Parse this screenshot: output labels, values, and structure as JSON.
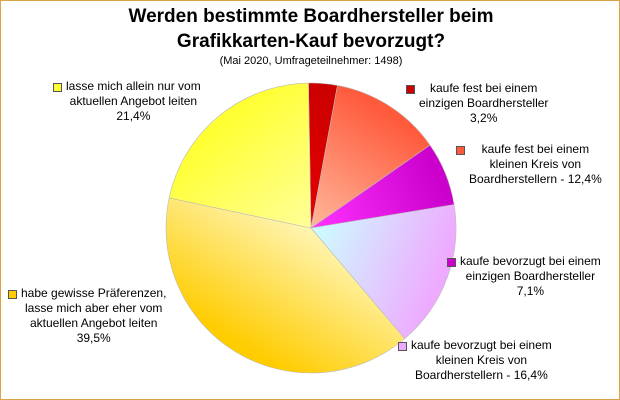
{
  "chart_data": {
    "type": "pie",
    "title_line1": "Werden bestimmte Boardhersteller beim",
    "title_line2": "Grafikkarten-Kauf bevorzugt?",
    "subtitle": "(Mai 2020, Umfrageteilnehmer: 1498)",
    "slices": [
      {
        "label": "kaufe fest bei einem einzigen Boardhersteller",
        "value": 3.2,
        "display": "3,2%",
        "color": "#cc0000",
        "color_light": "#e60000"
      },
      {
        "label": "kaufe fest bei einem kleinen Kreis von Boardherstellern",
        "value": 12.4,
        "display": "12,4%",
        "color": "#ff5a3c",
        "color_light": "#ffb89c"
      },
      {
        "label": "kaufe bevorzugt bei einem einzigen Boardhersteller",
        "value": 7.1,
        "display": "7,1%",
        "color": "#cc00cc",
        "color_light": "#ff33ff"
      },
      {
        "label": "kaufe bevorzugt bei einem kleinen Kreis von Boardherstellern",
        "value": 16.4,
        "display": "16,4%",
        "color": "#eeaaff",
        "color_light": "#ccffff"
      },
      {
        "label": "habe gewisse Präferenzen, lasse mich aber eher vom aktuellen Angebot leiten",
        "value": 39.5,
        "display": "39,5%",
        "color": "#ffcc00",
        "color_light": "#fff5b3"
      },
      {
        "label": "lasse mich allein nur vom aktuellen Angebot leiten",
        "value": 21.4,
        "display": "21,4%",
        "color": "#ffff33",
        "color_light": "#ffff99"
      }
    ],
    "labels": {
      "s0": "kaufe fest bei einem\neinzigen Boardhersteller\n3,2%",
      "s1": "kaufe fest bei einem\nkleinen Kreis von\nBoardherstellern - 12,4%",
      "s2": "kaufe bevorzugt bei einem\neinzigen Boardhersteller\n7,1%",
      "s3": "kaufe bevorzugt bei einem\nkleinen Kreis von\nBoardherstellern - 16,4%",
      "s4": "habe gewisse Präferenzen,\nlasse mich aber eher vom\naktuellen Angebot leiten\n39,5%",
      "s5": "lasse mich allein nur vom\naktuellen Angebot leiten\n21,4%"
    },
    "start_angle_deg": -1,
    "direction": "clockwise",
    "legend": "labels next to slices"
  }
}
